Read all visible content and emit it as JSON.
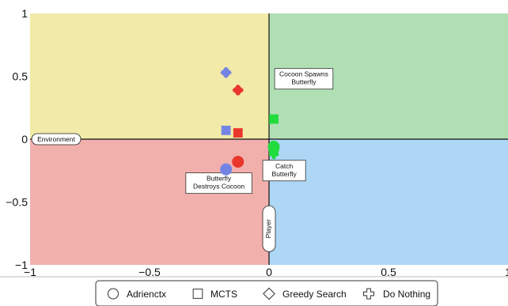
{
  "chart_data": {
    "type": "scatter",
    "xlim": [
      -1,
      1
    ],
    "ylim": [
      -1,
      1
    ],
    "x_ticks": [
      {
        "value": -1,
        "label": "−1"
      },
      {
        "value": -0.5,
        "label": "−0.5"
      },
      {
        "value": 0,
        "label": "0"
      },
      {
        "value": 0.5,
        "label": "0.5"
      },
      {
        "value": 1,
        "label": "1"
      }
    ],
    "y_ticks": [
      {
        "value": 1,
        "label": "1"
      },
      {
        "value": 0.5,
        "label": "0.5"
      },
      {
        "value": 0,
        "label": "0"
      },
      {
        "value": -0.5,
        "label": "−0.5"
      },
      {
        "value": -1,
        "label": "−1"
      }
    ],
    "quadrants": {
      "top_left": "#f1eaa8",
      "top_right": "#b0dfb4",
      "bottom_left": "#f2b0ad",
      "bottom_right": "#aed6f5"
    },
    "axis_labels": {
      "x": "Environment",
      "y": "Player"
    },
    "annotations": [
      {
        "text": [
          "Cocoon Spawns",
          "Butterfly"
        ],
        "x": 0.04,
        "y": 0.48
      },
      {
        "text": [
          "Butterfly",
          "Destroys Cocoon"
        ],
        "x": -0.21,
        "y": -0.35
      },
      {
        "text": [
          "Catch",
          "Butterfly"
        ],
        "x": 0.04,
        "y": -0.25
      }
    ],
    "series": [
      {
        "color": "#7484e4",
        "points": [
          {
            "marker": "circle",
            "x": -0.18,
            "y": -0.24
          },
          {
            "marker": "square",
            "x": -0.18,
            "y": 0.07
          },
          {
            "marker": "diamond",
            "x": -0.18,
            "y": 0.53
          },
          {
            "marker": "cross",
            "x": -0.18,
            "y": 0.53
          }
        ]
      },
      {
        "color": "#e9372c",
        "points": [
          {
            "marker": "circle",
            "x": -0.13,
            "y": -0.18
          },
          {
            "marker": "square",
            "x": -0.13,
            "y": 0.05
          },
          {
            "marker": "diamond",
            "x": -0.13,
            "y": 0.39
          },
          {
            "marker": "cross",
            "x": -0.13,
            "y": 0.39
          }
        ]
      },
      {
        "color": "#21dc3c",
        "points": [
          {
            "marker": "circle",
            "x": 0.02,
            "y": -0.06
          },
          {
            "marker": "square",
            "x": 0.02,
            "y": 0.16
          },
          {
            "marker": "diamond",
            "x": 0.02,
            "y": -0.09
          },
          {
            "marker": "cross",
            "x": 0.02,
            "y": -0.12
          }
        ]
      }
    ],
    "legend": {
      "placement": "bottom",
      "entries": [
        {
          "marker": "circle",
          "label": "Adrienctx"
        },
        {
          "marker": "square",
          "label": "MCTS"
        },
        {
          "marker": "diamond",
          "label": "Greedy Search"
        },
        {
          "marker": "cross",
          "label": "Do Nothing"
        }
      ]
    }
  }
}
